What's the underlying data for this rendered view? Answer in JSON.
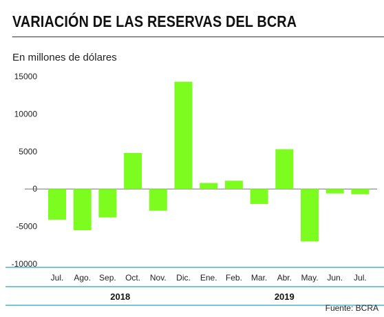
{
  "title": "VARIACIÓN DE LAS RESERVAS DEL BCRA",
  "unit_label": "En millones de dólares",
  "source": "Fuente: BCRA",
  "colors": {
    "bar": "#7cfc1f",
    "axis_line": "#4fb3c9",
    "zero_line": "#777777"
  },
  "chart_data": {
    "type": "bar",
    "categories": [
      "Jul.",
      "Ago.",
      "Sep.",
      "Oct.",
      "Nov.",
      "Dic.",
      "Ene.",
      "Feb.",
      "Mar.",
      "Abr.",
      "May.",
      "Jun.",
      "Jul."
    ],
    "values": [
      -4100,
      -5500,
      -3800,
      4800,
      -2900,
      14300,
      800,
      1100,
      -2000,
      5300,
      -7000,
      -600,
      -700
    ],
    "year_labels": [
      {
        "label": "2018",
        "start_index": 0,
        "end_index": 5
      },
      {
        "label": "2019",
        "start_index": 6,
        "end_index": 12
      }
    ],
    "yticks": [
      15000,
      10000,
      5000,
      0,
      -5000,
      -10000
    ],
    "ylim": [
      -10000,
      15000
    ],
    "grid": false,
    "legend": "none"
  }
}
